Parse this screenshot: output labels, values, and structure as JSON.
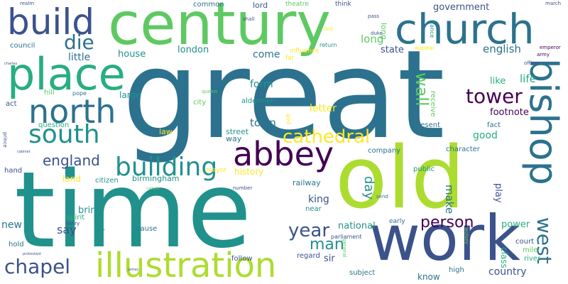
{
  "colors": {
    "background": "#ffffff",
    "palette": [
      "#440154",
      "#3b528b",
      "#2c728e",
      "#21918c",
      "#28ae80",
      "#5ec962",
      "#addc30",
      "#fde725"
    ]
  },
  "words": {
    "great": "great",
    "old": "old",
    "time": "time",
    "century": "century",
    "work": "work",
    "church": "church",
    "place": "place",
    "build": "build",
    "north": "north",
    "illustration": "illustration",
    "abbey": "abbey",
    "south": "south",
    "bishop": "bishop",
    "building": "building",
    "cathedral": "cathedral",
    "chapel": "chapel",
    "die": "die",
    "tower": "tower",
    "west": "west",
    "year": "year",
    "wall": "wall",
    "man": "man",
    "person": "person",
    "england": "england",
    "english": "english",
    "life": "life",
    "town": "town",
    "government": "government",
    "little": "little",
    "house": "house",
    "london": "london",
    "come": "come",
    "long": "long",
    "state": "state",
    "form": "form",
    "letter": "letter",
    "like": "like",
    "footnote": "footnote",
    "good": "good",
    "say": "say",
    "bring": "bring",
    "day": "day",
    "king": "king",
    "national": "national",
    "new": "new",
    "sir": "sir",
    "make": "make",
    "country": "country",
    "power": "power",
    "land": "land",
    "history": "history",
    "birmingham": "birmingham",
    "law": "law",
    "large": "large",
    "street": "street",
    "way": "way",
    "road": "road",
    "spirit": "spirit",
    "citizen": "citizen",
    "mayor": "mayor",
    "railway": "railway",
    "near": "near",
    "public": "public",
    "play": "play",
    "character": "character",
    "company": "company",
    "present": "present",
    "fact": "fact",
    "hand": "hand",
    "question": "question",
    "aldermen": "aldermen",
    "city": "city",
    "hill": "hill",
    "pope": "pope",
    "act": "act",
    "council": "council",
    "common": "common",
    "lord": "lord",
    "theatre": "theatre",
    "think": "think",
    "realm": "realm",
    "shall": "shall",
    "ibid": "ibid",
    "pass": "pass",
    "march": "march",
    "return": "return",
    "influence": "influence",
    "far": "far",
    "duke": "duke",
    "appear": "appear",
    "france": "france",
    "emperor": "emperor",
    "army": "army",
    "officer": "officer",
    "queen": "queen",
    "receive": "receive",
    "god": "god",
    "prince": "prince",
    "subject": "subject",
    "know": "know",
    "high": "high",
    "class": "class",
    "court": "court",
    "mile": "mile",
    "river": "river",
    "early": "early",
    "regard": "regard",
    "follow": "follow",
    "general": "general",
    "parliament": "parliament",
    "cause": "cause",
    "henry": "henry",
    "hold": "hold",
    "number": "number",
    "send": "send",
    "wolsey": "wolsey",
    "charles": "charles",
    "protestant": "protestant",
    "james": "james",
    "catholic": "catholic",
    "cabinet": "cabinet"
  }
}
